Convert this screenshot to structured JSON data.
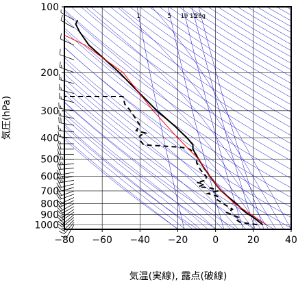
{
  "chart_data": {
    "type": "line",
    "title": "",
    "xlabel": "気温(実線), 露点(破線)",
    "ylabel": "気圧(hPa)",
    "xlim": [
      -80,
      40
    ],
    "ylim": [
      1050,
      100
    ],
    "y_scale": "log",
    "x_ticks": [
      -80,
      -60,
      -40,
      -20,
      0,
      20,
      40
    ],
    "x_tick_labels": [
      "−80",
      "−60",
      "−40",
      "−20",
      "0",
      "20",
      "40"
    ],
    "y_ticks": [
      100,
      200,
      300,
      400,
      500,
      600,
      700,
      800,
      900,
      1000
    ],
    "grid": true,
    "mixing_ratio_labels": [
      "1",
      "5",
      "10",
      "15",
      "20g"
    ],
    "mixing_ratio_label_x": [
      1,
      5,
      10,
      15,
      20
    ],
    "colors": {
      "temperature": "#000000",
      "dewpoint": "#000000",
      "parcel": "#ff0000",
      "guide_lines": "#0000cc",
      "grid": "#000000"
    },
    "series": [
      {
        "key": "temperature",
        "style": "solid",
        "points": [
          [
            25,
            1000
          ],
          [
            23,
            970
          ],
          [
            20,
            925
          ],
          [
            16,
            880
          ],
          [
            14,
            850
          ],
          [
            11,
            800
          ],
          [
            7,
            750
          ],
          [
            3,
            700
          ],
          [
            0,
            650
          ],
          [
            -3,
            600
          ],
          [
            -6,
            550
          ],
          [
            -9,
            500
          ],
          [
            -12,
            450
          ],
          [
            -12,
            430
          ],
          [
            -15,
            400
          ],
          [
            -22,
            350
          ],
          [
            -31,
            300
          ],
          [
            -40,
            250
          ],
          [
            -51,
            200
          ],
          [
            -60,
            170
          ],
          [
            -67,
            150
          ],
          [
            -72,
            130
          ],
          [
            -74,
            120
          ],
          [
            -73,
            115
          ]
        ]
      },
      {
        "key": "dewpoint",
        "style": "dashed",
        "points": [
          [
            22,
            1000
          ],
          [
            13,
            975
          ],
          [
            11,
            950
          ],
          [
            12,
            925
          ],
          [
            10,
            910
          ],
          [
            6,
            880
          ],
          [
            9,
            850
          ],
          [
            6,
            820
          ],
          [
            3,
            790
          ],
          [
            0,
            760
          ],
          [
            1,
            740
          ],
          [
            -4,
            720
          ],
          [
            1,
            700
          ],
          [
            -2,
            680
          ],
          [
            -9,
            670
          ],
          [
            -6,
            650
          ],
          [
            -10,
            640
          ],
          [
            -5,
            625
          ],
          [
            -5,
            600
          ],
          [
            -8,
            560
          ],
          [
            -10,
            520
          ],
          [
            -10,
            480
          ],
          [
            -12,
            460
          ],
          [
            -15,
            445
          ],
          [
            -20,
            440
          ],
          [
            -29,
            435
          ],
          [
            -38,
            430
          ],
          [
            -40,
            410
          ],
          [
            -40,
            390
          ],
          [
            -37,
            380
          ],
          [
            -42,
            370
          ],
          [
            -40,
            350
          ],
          [
            -45,
            300
          ],
          [
            -48,
            280
          ],
          [
            -49,
            258
          ],
          [
            -70,
            258
          ],
          [
            -78,
            258
          ],
          [
            -82,
            258
          ]
        ]
      },
      {
        "key": "parcel",
        "style": "solid",
        "points": [
          [
            27,
            1000
          ],
          [
            19,
            900
          ],
          [
            10,
            800
          ],
          [
            3,
            700
          ],
          [
            -3,
            600
          ],
          [
            -9,
            500
          ],
          [
            -20,
            400
          ],
          [
            -33,
            300
          ],
          [
            -49,
            200
          ],
          [
            -69,
            150
          ],
          [
            -80,
            135
          ]
        ]
      }
    ],
    "wind_barbs": [
      {
        "p": 1000,
        "dir": 210,
        "speed": 10
      },
      {
        "p": 975,
        "dir": 220,
        "speed": 10
      },
      {
        "p": 950,
        "dir": 225,
        "speed": 15
      },
      {
        "p": 925,
        "dir": 230,
        "speed": 15
      },
      {
        "p": 900,
        "dir": 230,
        "speed": 20
      },
      {
        "p": 875,
        "dir": 235,
        "speed": 20
      },
      {
        "p": 850,
        "dir": 235,
        "speed": 15
      },
      {
        "p": 825,
        "dir": 240,
        "speed": 15
      },
      {
        "p": 800,
        "dir": 240,
        "speed": 20
      },
      {
        "p": 775,
        "dir": 245,
        "speed": 20
      },
      {
        "p": 750,
        "dir": 245,
        "speed": 15
      },
      {
        "p": 725,
        "dir": 250,
        "speed": 15
      },
      {
        "p": 700,
        "dir": 250,
        "speed": 20
      },
      {
        "p": 675,
        "dir": 255,
        "speed": 20
      },
      {
        "p": 650,
        "dir": 255,
        "speed": 20
      },
      {
        "p": 625,
        "dir": 260,
        "speed": 25
      },
      {
        "p": 600,
        "dir": 260,
        "speed": 25
      },
      {
        "p": 575,
        "dir": 260,
        "speed": 20
      },
      {
        "p": 550,
        "dir": 265,
        "speed": 20
      },
      {
        "p": 525,
        "dir": 265,
        "speed": 25
      },
      {
        "p": 500,
        "dir": 270,
        "speed": 25
      },
      {
        "p": 475,
        "dir": 270,
        "speed": 20
      },
      {
        "p": 450,
        "dir": 270,
        "speed": 20
      },
      {
        "p": 425,
        "dir": 270,
        "speed": 15
      },
      {
        "p": 400,
        "dir": 275,
        "speed": 15
      },
      {
        "p": 375,
        "dir": 275,
        "speed": 15
      },
      {
        "p": 350,
        "dir": 280,
        "speed": 20
      },
      {
        "p": 325,
        "dir": 280,
        "speed": 15
      },
      {
        "p": 300,
        "dir": 280,
        "speed": 15
      },
      {
        "p": 275,
        "dir": 285,
        "speed": 15
      },
      {
        "p": 250,
        "dir": 285,
        "speed": 15
      },
      {
        "p": 225,
        "dir": 285,
        "speed": 15
      },
      {
        "p": 200,
        "dir": 290,
        "speed": 15
      },
      {
        "p": 175,
        "dir": 290,
        "speed": 10
      },
      {
        "p": 150,
        "dir": 295,
        "speed": 10
      },
      {
        "p": 125,
        "dir": 300,
        "speed": 10
      },
      {
        "p": 115,
        "dir": 300,
        "speed": 5
      }
    ]
  }
}
